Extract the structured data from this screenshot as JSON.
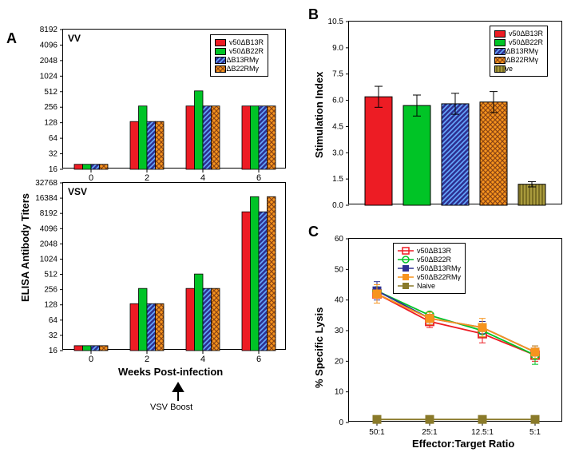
{
  "panelA": {
    "label": "A",
    "y_axis_label": "ELISA Antibody Titers",
    "x_axis_label": "Weeks Post-infection",
    "arrow_text": "VSV Boost",
    "legend": [
      "v50ΔB13R",
      "v50ΔB22R",
      "v50ΔB13RMγ",
      "v50ΔB22RMγ"
    ],
    "colors": {
      "v50dB13R": "#ed1c24",
      "v50dB22R": "#00c426",
      "v50dB13RMg": "#2e3192",
      "v50dB22RMg": "#f7941d",
      "hatch_blue": "#0066ff",
      "hatch_orange": "#8b4513"
    },
    "vv": {
      "title": "VV",
      "yticks": [
        16,
        32,
        64,
        128,
        256,
        512,
        1024,
        2048,
        4096,
        8192
      ],
      "xticks": [
        "0",
        "2",
        "4",
        "6"
      ],
      "values": {
        "0": [
          20,
          20,
          20,
          20
        ],
        "2": [
          135,
          270,
          135,
          135
        ],
        "4": [
          270,
          530,
          270,
          270
        ],
        "6": [
          270,
          270,
          270,
          270
        ]
      }
    },
    "vsv": {
      "title": "VSV",
      "yticks": [
        16,
        32,
        64,
        128,
        256,
        512,
        1024,
        2048,
        4096,
        8192,
        16384,
        32768
      ],
      "xticks": [
        "0",
        "2",
        "4",
        "6"
      ],
      "values": {
        "0": [
          20,
          20,
          20,
          20
        ],
        "2": [
          135,
          270,
          135,
          135
        ],
        "4": [
          270,
          520,
          270,
          270
        ],
        "6": [
          8800,
          17500,
          8800,
          17500
        ]
      }
    }
  },
  "panelB": {
    "label": "B",
    "y_axis_label": "Stimulation Index",
    "yticks": [
      0,
      1.5,
      3.0,
      4.5,
      6.0,
      7.5,
      9.0,
      10.5
    ],
    "legend": [
      "v50ΔB13R",
      "v50ΔB22R",
      "v50ΔB13RMγ",
      "v50ΔB22RMγ",
      "Naive"
    ],
    "values": [
      6.2,
      5.7,
      5.8,
      5.9,
      1.2
    ],
    "errors": [
      0.6,
      0.6,
      0.6,
      0.6,
      0.15
    ],
    "colors": [
      "#ed1c24",
      "#00c426",
      "#2e3192",
      "#f7941d",
      "#8a7a2a"
    ],
    "patterns": [
      "solid",
      "solid",
      "diag",
      "cross",
      "vert"
    ]
  },
  "panelC": {
    "label": "C",
    "y_axis_label": "% Specific Lysis",
    "x_axis_label": "Effector:Target Ratio",
    "yticks": [
      0,
      10,
      20,
      30,
      40,
      50,
      60
    ],
    "xticks": [
      "50:1",
      "25:1",
      "12.5:1",
      "5:1"
    ],
    "legend": [
      "v50ΔB13R",
      "v50ΔB22R",
      "v50ΔB13RMγ",
      "v50ΔB22RMγ",
      "Naive"
    ],
    "colors": [
      "#ed1c24",
      "#00c426",
      "#2e3192",
      "#f7941d",
      "#8a7a2a"
    ],
    "markers": [
      "square-open",
      "circle-open",
      "square-fill",
      "square-fill",
      "square-fill"
    ],
    "series": {
      "v50dB13R": {
        "y": [
          42,
          33,
          29,
          22
        ],
        "e": [
          3,
          2,
          3,
          2
        ]
      },
      "v50dB22R": {
        "y": [
          43,
          35,
          30,
          22
        ],
        "e": [
          2,
          1,
          2,
          3
        ]
      },
      "v50dB13RMg": {
        "y": [
          43,
          34,
          31,
          23
        ],
        "e": [
          3,
          2,
          2,
          2
        ]
      },
      "v50dB22RMg": {
        "y": [
          42,
          34,
          31,
          23
        ],
        "e": [
          3,
          2,
          3,
          2
        ]
      },
      "Naive": {
        "y": [
          1,
          1,
          1,
          1
        ],
        "e": [
          0.5,
          0.5,
          0.5,
          0.5
        ]
      }
    }
  }
}
